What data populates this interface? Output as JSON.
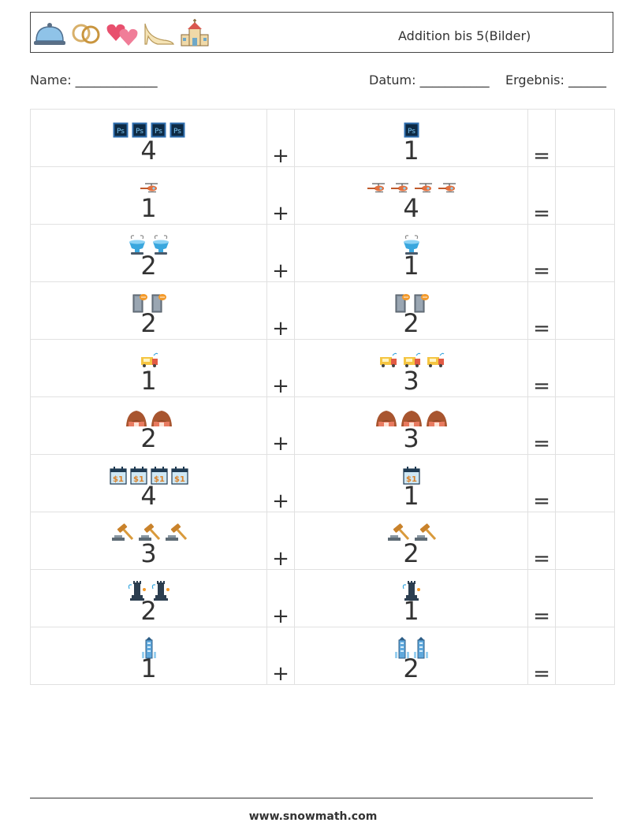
{
  "header": {
    "title": "Addition bis 5(Bilder)",
    "icons": [
      "cloche-icon",
      "wedding-rings-icon",
      "hearts-icon",
      "high-heel-shoe-icon",
      "chapel-icon"
    ]
  },
  "meta": {
    "name_label": "Name: _____________",
    "date_label": "Datum: ___________",
    "result_label": "Ergebnis: ______"
  },
  "operators": {
    "plus": "+",
    "equals": "="
  },
  "rows": [
    {
      "icon": "photoshop-icon",
      "a": "4",
      "b": "1"
    },
    {
      "icon": "helicopter-icon",
      "a": "1",
      "b": "4"
    },
    {
      "icon": "fountain-icon",
      "a": "2",
      "b": "1"
    },
    {
      "icon": "door-chat-icon",
      "a": "2",
      "b": "2"
    },
    {
      "icon": "mail-truck-icon",
      "a": "1",
      "b": "3"
    },
    {
      "icon": "hill-hut-icon",
      "a": "2",
      "b": "3"
    },
    {
      "icon": "dollar-calendar-icon",
      "a": "4",
      "b": "1"
    },
    {
      "icon": "gavel-icon",
      "a": "3",
      "b": "2"
    },
    {
      "icon": "chess-rook-icon",
      "a": "2",
      "b": "1"
    },
    {
      "icon": "skyscraper-icon",
      "a": "1",
      "b": "2"
    }
  ],
  "footer": {
    "url": "www.snowmath.com"
  }
}
